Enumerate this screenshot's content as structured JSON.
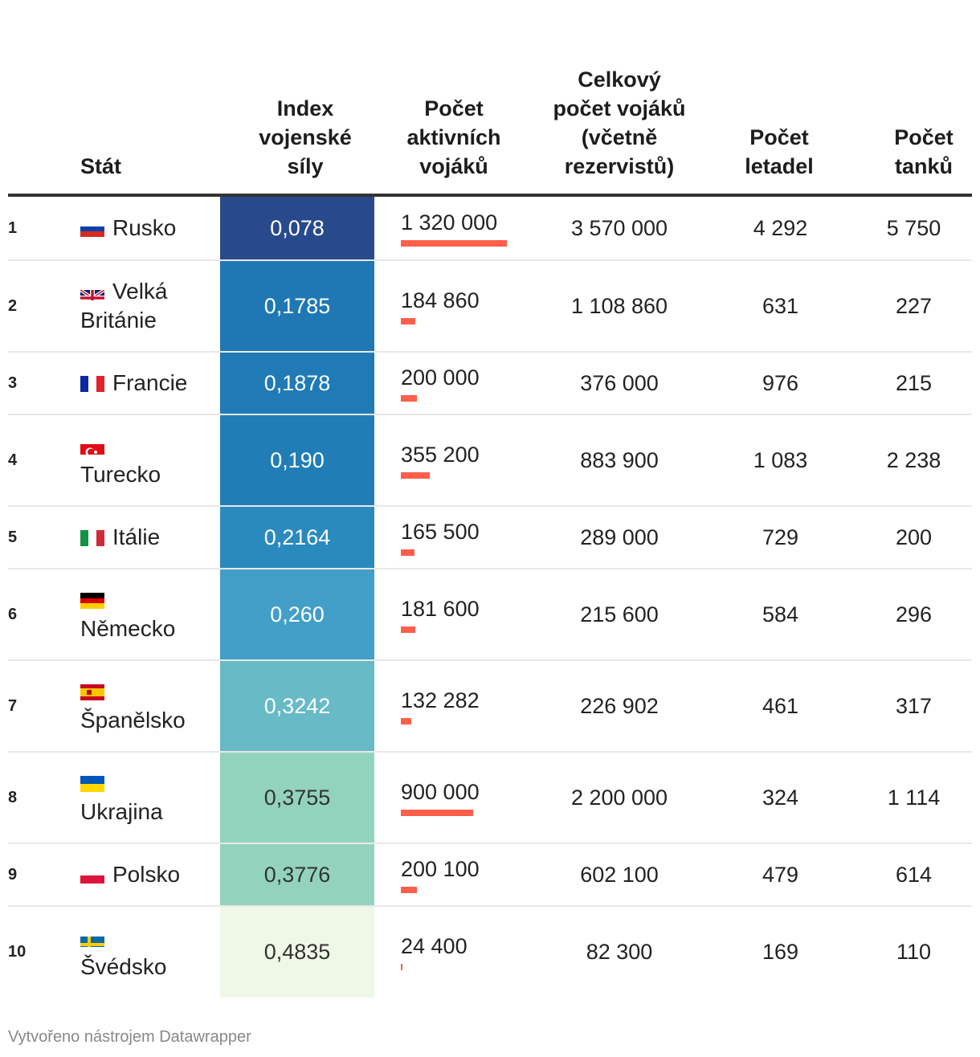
{
  "headers": {
    "country": "Stát",
    "index": "Index vojenské síly",
    "active": "Počet aktivních vojáků",
    "total": "Celkový počet vojáků (včetně rezervistů)",
    "planes": "Počet letadel",
    "tanks": "Počet tanků"
  },
  "chart_data": {
    "type": "table",
    "columns": [
      "",
      "Stát",
      "Index vojenské síly",
      "Počet aktivních vojáků",
      "Celkový počet vojáků (včetně rezervistů)",
      "Počet letadel",
      "Počet tanků"
    ],
    "rows": [
      {
        "rank": "1",
        "country": "Rusko",
        "flag": "russia",
        "index": "0,078",
        "active": "1 320 000",
        "active_value": 1320000,
        "total": "3 570 000",
        "planes": "4 292",
        "tanks": "5 750",
        "color": "#284a8c"
      },
      {
        "rank": "2",
        "country": "Velká Británie",
        "flag": "uk",
        "index": "0,1785",
        "active": "184 860",
        "active_value": 184860,
        "total": "1 108 860",
        "planes": "631",
        "tanks": "227",
        "color": "#1f78b4"
      },
      {
        "rank": "3",
        "country": "Francie",
        "flag": "france",
        "index": "0,1878",
        "active": "200 000",
        "active_value": 200000,
        "total": "376 000",
        "planes": "976",
        "tanks": "215",
        "color": "#1f7ab5"
      },
      {
        "rank": "4",
        "country": "Turecko",
        "flag": "turkey",
        "index": "0,190",
        "active": "355 200",
        "active_value": 355200,
        "total": "883 900",
        "planes": "1 083",
        "tanks": "2 238",
        "color": "#217db6"
      },
      {
        "rank": "5",
        "country": "Itálie",
        "flag": "italy",
        "index": "0,2164",
        "active": "165 500",
        "active_value": 165500,
        "total": "289 000",
        "planes": "729",
        "tanks": "200",
        "color": "#2a8abe"
      },
      {
        "rank": "6",
        "country": "Německo",
        "flag": "germany",
        "index": "0,260",
        "active": "181 600",
        "active_value": 181600,
        "total": "215 600",
        "planes": "584",
        "tanks": "296",
        "color": "#429fc8"
      },
      {
        "rank": "7",
        "country": "Španělsko",
        "flag": "spain",
        "index": "0,3242",
        "active": "132 282",
        "active_value": 132282,
        "total": "226 902",
        "planes": "461",
        "tanks": "317",
        "color": "#67bac6"
      },
      {
        "rank": "8",
        "country": "Ukrajina",
        "flag": "ukraine",
        "index": "0,3755",
        "active": "900 000",
        "active_value": 900000,
        "total": "2 200 000",
        "planes": "324",
        "tanks": "1 114",
        "color": "#92d3be"
      },
      {
        "rank": "9",
        "country": "Polsko",
        "flag": "poland",
        "index": "0,3776",
        "active": "200 100",
        "active_value": 200100,
        "total": "602 100",
        "planes": "479",
        "tanks": "614",
        "color": "#93d3be"
      },
      {
        "rank": "10",
        "country": "Švédsko",
        "flag": "sweden",
        "index": "0,4835",
        "active": "24 400",
        "active_value": 24400,
        "total": "82 300",
        "planes": "169",
        "tanks": "110",
        "color": "#eff8e6"
      }
    ],
    "bar_max": 1320000,
    "bar_color": "#ff5e4b"
  },
  "footer": "Vytvořeno nástrojem Datawrapper"
}
